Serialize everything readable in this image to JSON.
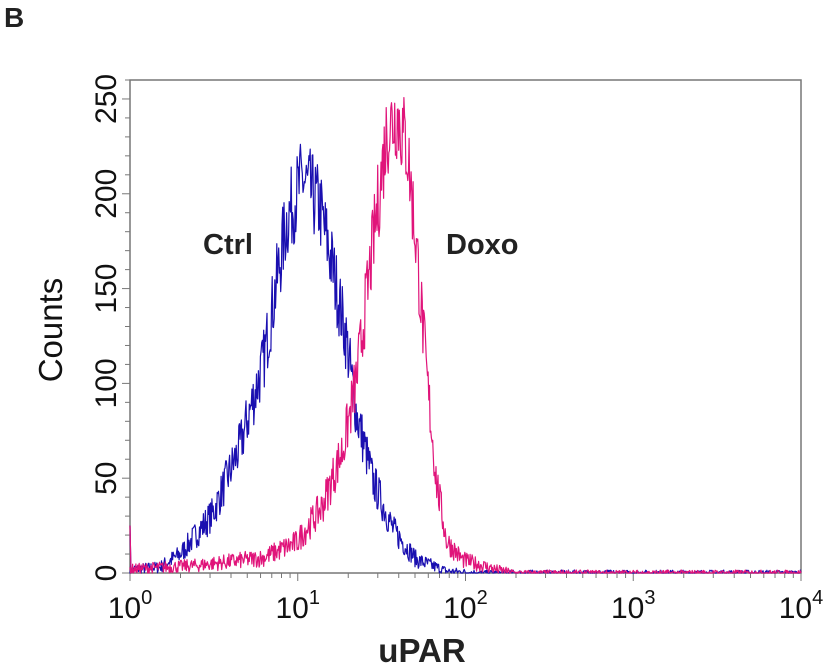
{
  "panel_label": "B",
  "chart_data": {
    "type": "line",
    "title": "",
    "xlabel": "uPAR",
    "ylabel": "Counts",
    "xscale": "log",
    "xlim": [
      1,
      10000
    ],
    "ylim": [
      0,
      260
    ],
    "xticks": [
      1,
      10,
      100,
      1000,
      10000
    ],
    "xtick_labels": [
      {
        "base": "10",
        "exp": "0"
      },
      {
        "base": "10",
        "exp": "1"
      },
      {
        "base": "10",
        "exp": "2"
      },
      {
        "base": "10",
        "exp": "3"
      },
      {
        "base": "10",
        "exp": "4"
      }
    ],
    "yticks": [
      0,
      50,
      100,
      150,
      200,
      250
    ],
    "ytick_labels": [
      "0",
      "50",
      "100",
      "150",
      "200",
      "250"
    ],
    "grid": false,
    "legend": "none",
    "series": [
      {
        "name": "Ctrl",
        "color": "#1a0fb0",
        "x": [
          1,
          1.5,
          2.0,
          3.1,
          4.5,
          6.2,
          7.5,
          8.6,
          10.7,
          13.5,
          16,
          19.5,
          22.4,
          28,
          37,
          51,
          77,
          120,
          300,
          10000
        ],
        "y": [
          2,
          3,
          10,
          31,
          66,
          110,
          154,
          186,
          208,
          193,
          163,
          123,
          84,
          49,
          23,
          7,
          1,
          0,
          0,
          0
        ]
      },
      {
        "name": "Doxo",
        "color": "#e0147a",
        "x": [
          1,
          2.5,
          6.2,
          9.8,
          14,
          18.7,
          22.4,
          25.7,
          29.5,
          34,
          39,
          45,
          51,
          59,
          67,
          77,
          96,
          150,
          200,
          10000
        ],
        "y": [
          2,
          4,
          8,
          16,
          35,
          66,
          102,
          145,
          189,
          233,
          242,
          224,
          172,
          102,
          49,
          17,
          7,
          2,
          0,
          0
        ]
      }
    ],
    "annotations": [
      "Ctrl",
      "Doxo"
    ]
  }
}
